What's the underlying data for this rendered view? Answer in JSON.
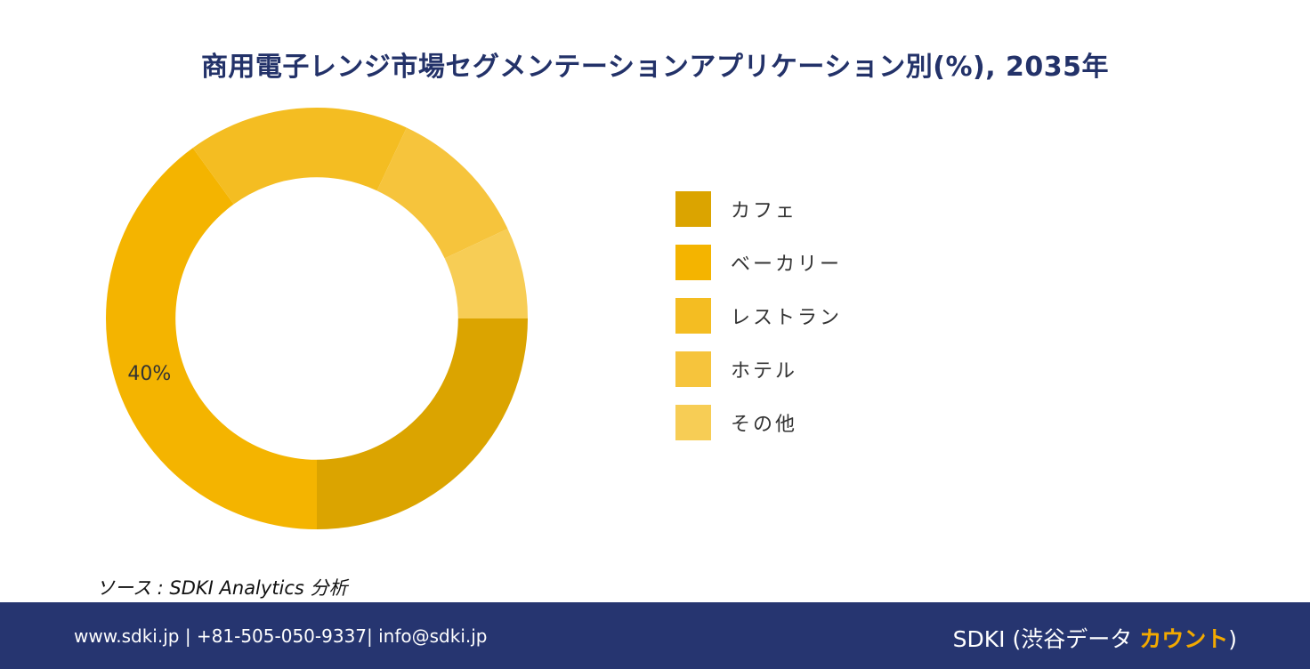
{
  "colors": {
    "title": "#233269",
    "footer_bg": "#263570",
    "brand_accent": "#f2a900"
  },
  "chart_data": {
    "type": "pie",
    "title": "商用電子レンジ市場セグメンテーションアプリケーション別(%), 2035年",
    "categories": [
      "カフェ",
      "ベーカリー",
      "レストラン",
      "ホテル",
      "その他"
    ],
    "values": [
      25,
      40,
      17,
      11,
      7
    ],
    "colors": [
      "#dba400",
      "#f4b400",
      "#f4bd22",
      "#f6c43c",
      "#f7cd55"
    ],
    "labels": [
      "",
      "40%",
      "",
      "",
      ""
    ],
    "inner_radius_ratio": 0.67,
    "legend_position": "right"
  },
  "source_text": "ソース : SDKI Analytics 分析",
  "footer": {
    "contact": "www.sdki.jp | +81-505-050-9337| info@sdki.jp",
    "brand_prefix": "SDKI (渋谷データ ",
    "brand_accent_text": "カウント",
    "brand_suffix": ")"
  }
}
